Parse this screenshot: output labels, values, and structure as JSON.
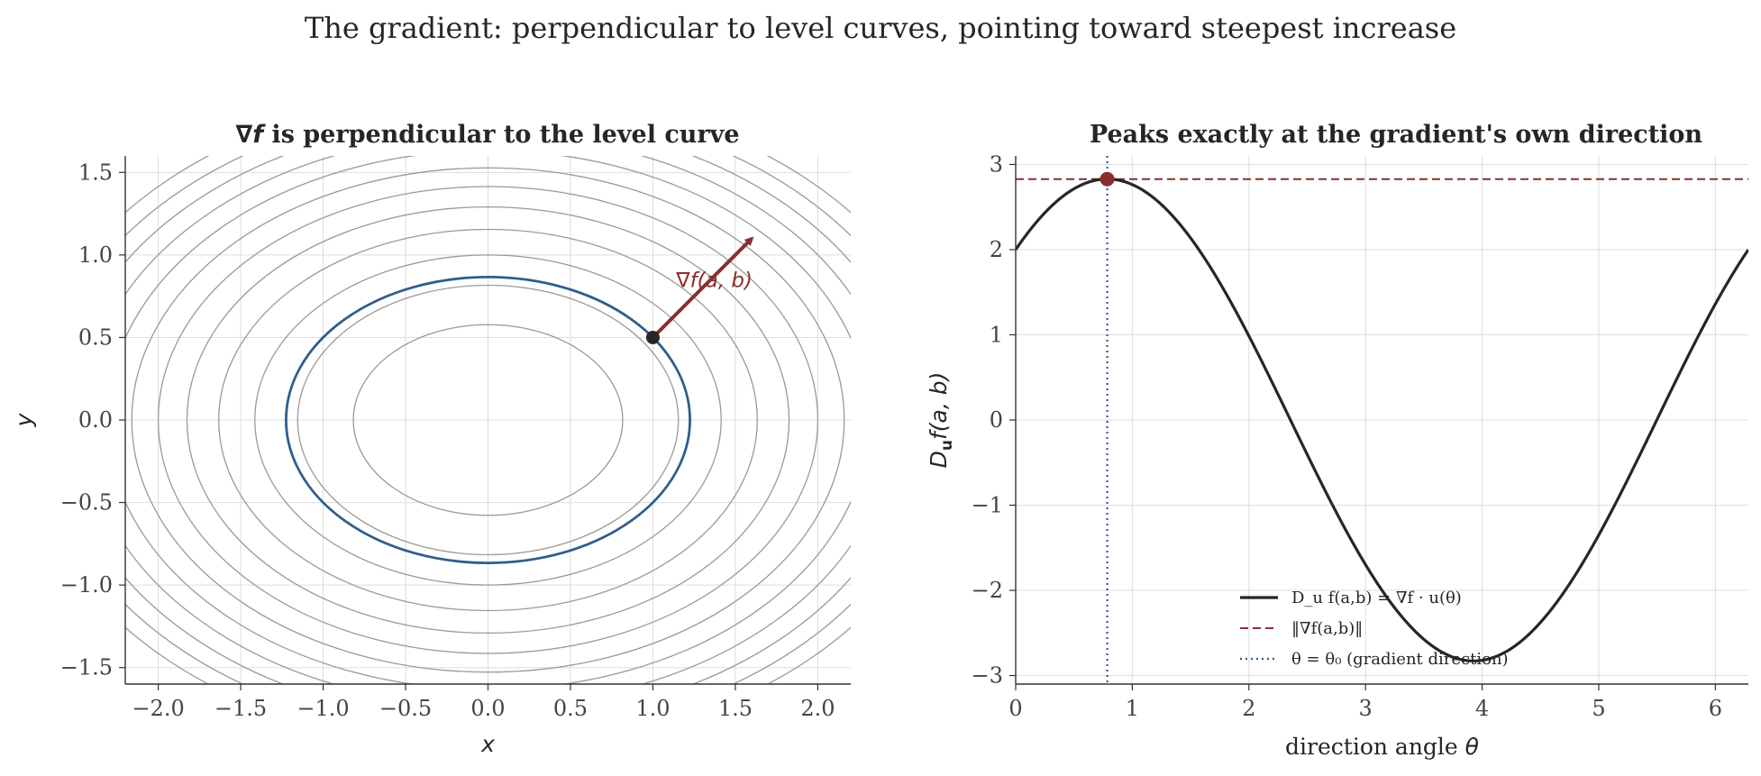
{
  "figure": {
    "suptitle": "The gradient: perpendicular to level curves, pointing toward steepest increase"
  },
  "chart_data": [
    {
      "type": "line",
      "subtype": "contour",
      "title": "∇f is perpendicular to the level curve",
      "title_prefix": "∇f",
      "title_rest": " is perpendicular to the level curve",
      "xlabel": "x",
      "ylabel": "y",
      "xlim": [
        -2.2,
        2.2
      ],
      "ylim": [
        -1.6,
        1.6
      ],
      "xticks": [
        -2.0,
        -1.5,
        -1.0,
        -0.5,
        0.0,
        0.5,
        1.0,
        1.5,
        2.0
      ],
      "xtick_labels": [
        "−2.0",
        "−1.5",
        "−1.0",
        "−0.5",
        "0.0",
        "0.5",
        "1.0",
        "1.5",
        "2.0"
      ],
      "yticks": [
        -1.5,
        -1.0,
        -0.5,
        0.0,
        0.5,
        1.0,
        1.5
      ],
      "ytick_labels": [
        "−1.5",
        "−1.0",
        "−0.5",
        "0.0",
        "0.5",
        "1.0",
        "1.5"
      ],
      "grid": true,
      "contours": {
        "function": "f(x,y) = x^2 + 2y^2",
        "levels": [
          0.667,
          1.333,
          2.0,
          2.667,
          3.333,
          4.0,
          4.667,
          5.333,
          6.0,
          6.667,
          7.333,
          8.0
        ],
        "color": "#999999"
      },
      "highlight_curve": {
        "level": 1.5,
        "color": "#2e5e8c"
      },
      "point": {
        "x": 1.0,
        "y": 0.5,
        "color": "#262626"
      },
      "gradient_arrow": {
        "x0": 1.0,
        "y0": 0.5,
        "x1": 1.6,
        "y1": 1.1,
        "color": "#8b2e2e"
      },
      "annotation": {
        "text": "∇f(a, b)",
        "x": 1.25,
        "y": 0.85
      }
    },
    {
      "type": "line",
      "title": "Peaks exactly at the gradient's own direction",
      "xlabel": "direction angle θ",
      "ylabel": "D_u f(a, b)",
      "xlim": [
        0,
        6.2832
      ],
      "ylim": [
        -3.1,
        3.1
      ],
      "xticks": [
        0,
        1,
        2,
        3,
        4,
        5,
        6
      ],
      "xtick_labels": [
        "0",
        "1",
        "2",
        "3",
        "4",
        "5",
        "6"
      ],
      "yticks": [
        -3,
        -2,
        -1,
        0,
        1,
        2,
        3
      ],
      "ytick_labels": [
        "−3",
        "−2",
        "−1",
        "0",
        "1",
        "2",
        "3"
      ],
      "grid": true,
      "series": [
        {
          "name": "D_u f(a,b) = ∇f · u(θ)",
          "function": "2cosθ + 2sinθ",
          "color": "#262626",
          "style": "solid"
        },
        {
          "name": "‖∇f(a,b)‖",
          "value": 2.828,
          "color": "#8b2e2e",
          "style": "dashed"
        },
        {
          "name": "θ = θ₀ (gradient direction)",
          "value": 0.785,
          "color": "#2e5e8c",
          "style": "dotted"
        }
      ],
      "peak": {
        "x": 0.785,
        "y": 2.828,
        "color": "#8b2e2e"
      },
      "legend": {
        "placement": "lower center",
        "entries": [
          "D_u f(a,b) = ∇f · u(θ)",
          "‖∇f(a,b)‖",
          "θ = θ₀ (gradient direction)"
        ]
      }
    }
  ]
}
